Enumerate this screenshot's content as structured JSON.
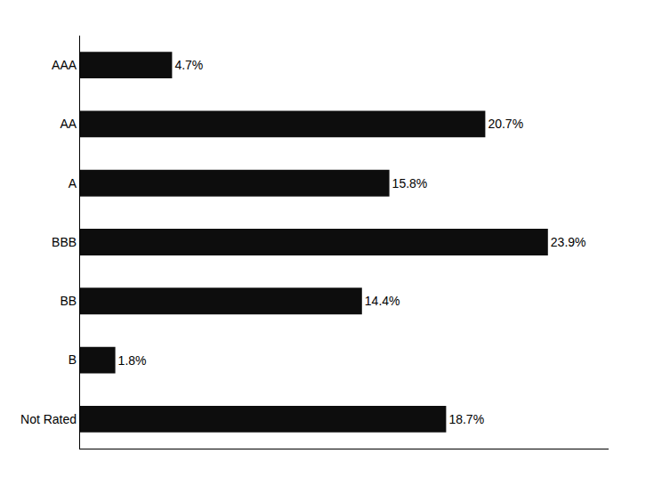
{
  "chart_data": {
    "type": "bar",
    "orientation": "horizontal",
    "categories": [
      "AAA",
      "AA",
      "A",
      "BBB",
      "BB",
      "B",
      "Not Rated"
    ],
    "values": [
      4.7,
      20.7,
      15.8,
      23.9,
      14.4,
      1.8,
      18.7
    ],
    "value_labels": [
      "4.7%",
      "20.7%",
      "15.8%",
      "23.9%",
      "14.4%",
      "1.8%",
      "18.7%"
    ],
    "data_labels": true,
    "color": "#0d0d0d",
    "xlim": [
      0,
      27
    ],
    "tick_labels": "y",
    "grid": false
  }
}
